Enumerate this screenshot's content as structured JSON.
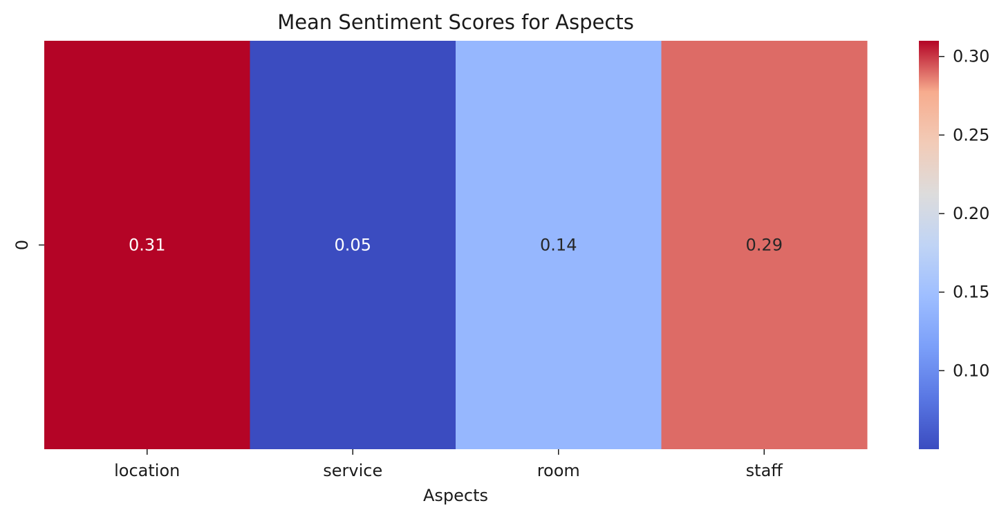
{
  "chart_data": {
    "type": "heatmap",
    "title": "Mean Sentiment Scores for Aspects",
    "xlabel": "Aspects",
    "ylabel": "",
    "x_categories": [
      "location",
      "service",
      "room",
      "staff"
    ],
    "y_categories": [
      "0"
    ],
    "values": [
      [
        0.31,
        0.05,
        0.14,
        0.29
      ]
    ],
    "annotations": [
      "0.31",
      "0.05",
      "0.14",
      "0.29"
    ],
    "colormap": "coolwarm",
    "color_range": [
      0.05,
      0.31
    ],
    "colorbar": {
      "ticks": [
        0.1,
        0.15,
        0.2,
        0.25,
        0.3
      ],
      "tick_labels": [
        "0.10",
        "0.15",
        "0.20",
        "0.25",
        "0.30"
      ]
    },
    "grid": false,
    "legend": "colorbar-right"
  }
}
